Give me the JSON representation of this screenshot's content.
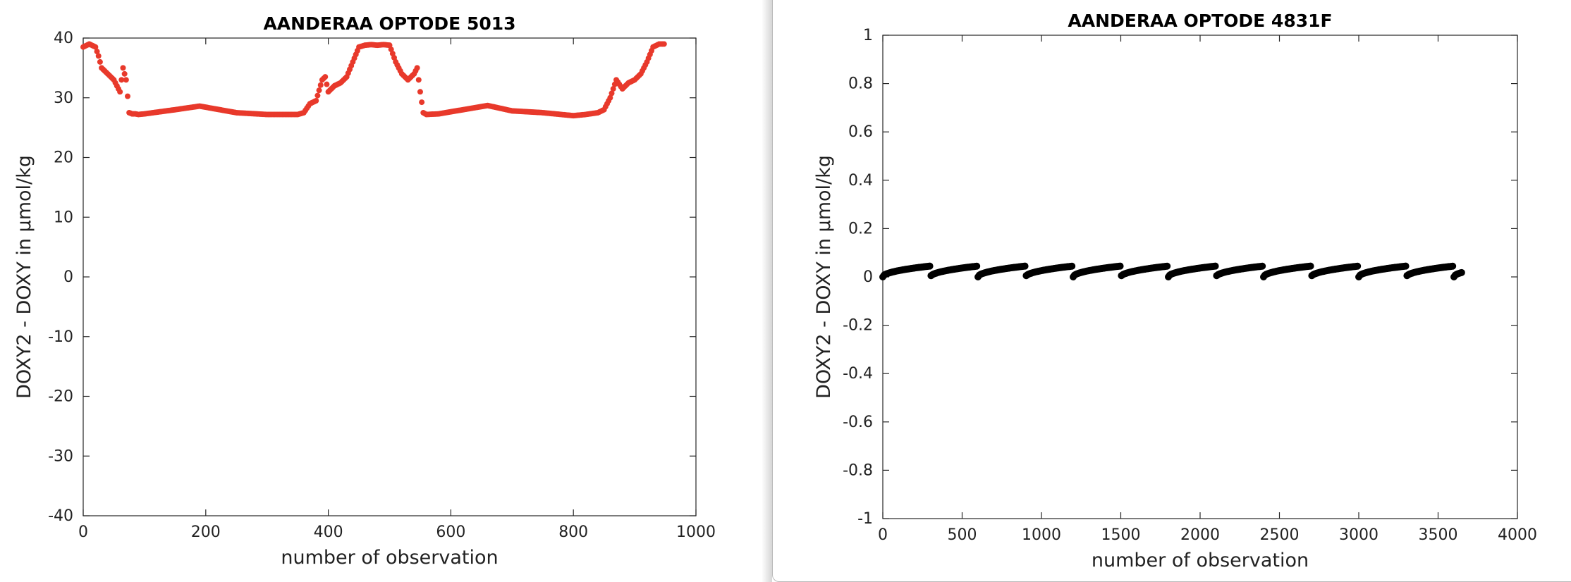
{
  "chart_data": [
    {
      "type": "scatter",
      "title": "AANDERAA OPTODE 5013",
      "xlabel": "number of observation",
      "ylabel": "DOXY2 - DOXY in µmol/kg",
      "xlim": [
        0,
        1000
      ],
      "ylim": [
        -40,
        40
      ],
      "xticks": [
        "0",
        "200",
        "400",
        "600",
        "800",
        "1000"
      ],
      "yticks": [
        "-40",
        "-30",
        "-20",
        "-10",
        "0",
        "10",
        "20",
        "30",
        "40"
      ],
      "marker_color": "#e8392b",
      "series": [
        {
          "x": [
            0,
            10,
            20,
            25,
            30,
            35,
            40,
            50,
            60,
            65,
            70,
            75,
            80,
            85,
            90,
            100,
            150,
            190,
            250,
            300,
            350,
            360,
            370,
            380,
            390,
            395,
            400,
            410,
            420,
            430,
            440,
            450,
            460,
            470,
            480,
            490,
            500,
            510,
            520,
            530,
            540,
            545,
            550,
            555,
            560,
            580,
            620,
            660,
            700,
            750,
            800,
            820,
            840,
            850,
            860,
            870,
            880,
            890,
            900,
            910,
            920,
            930,
            940,
            948
          ],
          "y": [
            38.5,
            39,
            38.5,
            37,
            35,
            34.5,
            34,
            33,
            31,
            35,
            33,
            27.5,
            27.3,
            27.3,
            27.2,
            27.3,
            28,
            28.6,
            27.5,
            27.2,
            27.2,
            27.5,
            29,
            29.5,
            33,
            33.5,
            31,
            32,
            32.5,
            33.5,
            36,
            38.5,
            38.8,
            38.9,
            38.8,
            38.9,
            38.8,
            36,
            34,
            33,
            34,
            35,
            31,
            27.5,
            27.2,
            27.3,
            28,
            28.7,
            27.8,
            27.5,
            27,
            27.2,
            27.5,
            28,
            30,
            33,
            31.5,
            32.5,
            33,
            34,
            36,
            38.5,
            39,
            39
          ]
        }
      ]
    },
    {
      "type": "scatter",
      "title": "AANDERAA OPTODE 4831F",
      "xlabel": "number of observation",
      "ylabel": "DOXY2 - DOXY in µmol/kg",
      "xlim": [
        0,
        4000
      ],
      "ylim": [
        -1,
        1
      ],
      "xticks": [
        "0",
        "500",
        "1000",
        "1500",
        "2000",
        "2500",
        "3000",
        "3500",
        "4000"
      ],
      "yticks": [
        "-1",
        "-0.8",
        "-0.6",
        "-0.4",
        "-0.2",
        "0",
        "0.2",
        "0.4",
        "0.6",
        "0.8",
        "1"
      ],
      "marker_color": "#000000",
      "sawtooth": {
        "x_start": 0,
        "x_end": 3650,
        "period": 300,
        "y_low": 0,
        "y_high": 0.045
      }
    }
  ]
}
